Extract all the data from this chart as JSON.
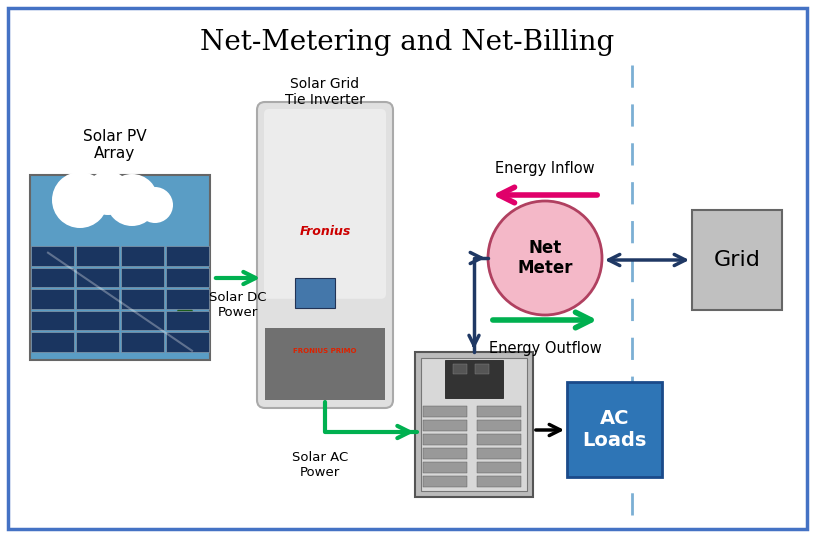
{
  "title": "Net-Metering and Net-Billing",
  "title_fontsize": 20,
  "bg_color": "#ffffff",
  "border_color": "#4472c4",
  "border_linewidth": 2.5,
  "solar_pv_label": "Solar PV\nArray",
  "inverter_label": "Solar Grid\nTie Inverter",
  "dc_power_label": "Solar DC\nPower",
  "ac_power_label": "Solar AC\nPower",
  "net_meter_label": "Net\nMeter",
  "energy_inflow_label": "Energy Inflow",
  "energy_outflow_label": "Energy Outflow",
  "grid_label": "Grid",
  "ac_loads_label": "AC\nLoads",
  "green_color": "#00b050",
  "blue_color": "#1f3864",
  "pink_arrow_color": "#e0006a",
  "grid_box_color": "#c0c0c0",
  "ac_loads_color": "#2e75b6",
  "net_meter_fill": "#f4b8c8",
  "net_meter_edge": "#b04060",
  "dashed_color": "#7bafd4",
  "fig_w": 8.15,
  "fig_h": 5.37,
  "dpi": 100
}
